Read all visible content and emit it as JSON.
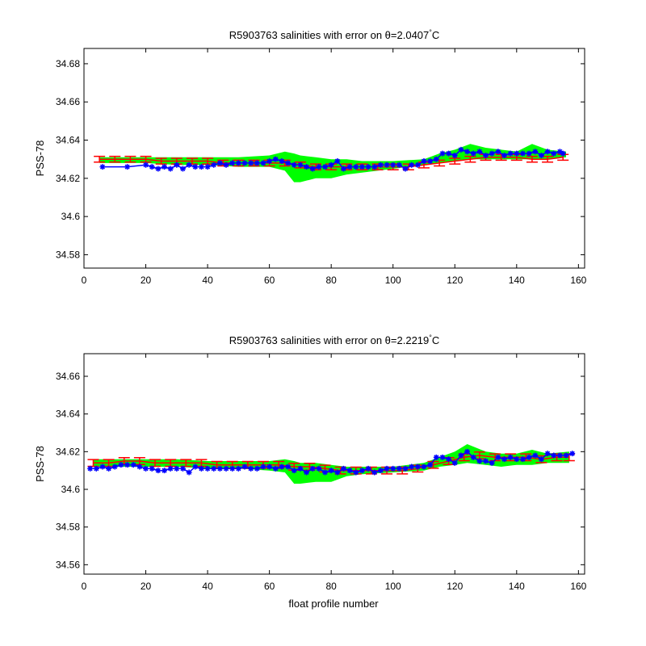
{
  "figure": {
    "xlabel": "float profile number"
  },
  "colors": {
    "envelope": "#00ff00",
    "error_bars": "#ff0000",
    "salinity": "#0000ff",
    "axes": "#000000"
  },
  "chart_data": [
    {
      "type": "line",
      "title_prefix": "R5903763 salinities with error on θ=",
      "theta": "2.0407",
      "unit": "°C",
      "xlabel": "",
      "ylabel": "PSS-78",
      "xlim": [
        0,
        162
      ],
      "ylim": [
        34.573,
        34.688
      ],
      "xticks": [
        0,
        20,
        40,
        60,
        80,
        100,
        120,
        140,
        160
      ],
      "yticks": [
        34.58,
        34.6,
        34.62,
        34.64,
        34.66,
        34.68
      ],
      "ytick_labels": [
        "34.58",
        "34.6",
        "34.62",
        "34.64",
        "34.66",
        "34.68"
      ],
      "series": [
        {
          "role": "envelope",
          "x": [
            5,
            15,
            20,
            30,
            40,
            50,
            60,
            65,
            68,
            70,
            75,
            80,
            85,
            90,
            100,
            110,
            115,
            120,
            125,
            130,
            135,
            140,
            145,
            150,
            156
          ],
          "upper": [
            34.631,
            34.631,
            34.631,
            34.631,
            34.631,
            34.631,
            34.632,
            34.634,
            34.633,
            34.632,
            34.631,
            34.63,
            34.63,
            34.629,
            34.629,
            34.63,
            34.633,
            34.635,
            34.638,
            34.636,
            34.635,
            34.634,
            34.638,
            34.635,
            34.634
          ],
          "lower": [
            34.628,
            34.628,
            34.628,
            34.627,
            34.627,
            34.626,
            34.626,
            34.624,
            34.618,
            34.618,
            34.62,
            34.62,
            34.622,
            34.623,
            34.625,
            34.627,
            34.628,
            34.629,
            34.63,
            34.63,
            34.63,
            34.63,
            34.63,
            34.63,
            34.631
          ]
        },
        {
          "role": "mapped",
          "x": [
            5,
            10,
            15,
            20,
            25,
            30,
            35,
            40,
            45,
            50,
            55,
            60,
            65,
            70,
            75,
            80,
            85,
            90,
            95,
            100,
            105,
            110,
            115,
            120,
            125,
            130,
            135,
            140,
            145,
            150,
            155
          ],
          "values": [
            34.63,
            34.63,
            34.63,
            34.63,
            34.629,
            34.629,
            34.629,
            34.629,
            34.628,
            34.628,
            34.628,
            34.628,
            34.628,
            34.627,
            34.626,
            34.626,
            34.626,
            34.626,
            34.626,
            34.626,
            34.626,
            34.627,
            34.628,
            34.629,
            34.63,
            34.631,
            34.631,
            34.631,
            34.63,
            34.63,
            34.631
          ],
          "error": 0.0015
        },
        {
          "role": "float",
          "x": [
            6,
            14,
            20,
            22,
            24,
            26,
            28,
            30,
            32,
            34,
            36,
            38,
            40,
            42,
            44,
            46,
            48,
            50,
            52,
            54,
            56,
            58,
            60,
            62,
            64,
            66,
            68,
            70,
            72,
            74,
            76,
            78,
            80,
            82,
            84,
            86,
            88,
            90,
            92,
            94,
            96,
            98,
            100,
            102,
            104,
            106,
            108,
            110,
            112,
            114,
            116,
            118,
            120,
            122,
            124,
            126,
            128,
            130,
            132,
            134,
            136,
            138,
            140,
            142,
            144,
            146,
            148,
            150,
            152,
            154,
            155
          ],
          "values": [
            34.626,
            34.626,
            34.627,
            34.626,
            34.625,
            34.626,
            34.625,
            34.627,
            34.625,
            34.627,
            34.626,
            34.626,
            34.626,
            34.627,
            34.628,
            34.627,
            34.628,
            34.628,
            34.628,
            34.628,
            34.628,
            34.628,
            34.629,
            34.63,
            34.629,
            34.628,
            34.627,
            34.627,
            34.626,
            34.625,
            34.626,
            34.626,
            34.627,
            34.629,
            34.625,
            34.626,
            34.626,
            34.626,
            34.626,
            34.626,
            34.627,
            34.627,
            34.627,
            34.627,
            34.625,
            34.627,
            34.627,
            34.629,
            34.629,
            34.63,
            34.633,
            34.633,
            34.632,
            34.635,
            34.634,
            34.633,
            34.634,
            34.632,
            34.633,
            34.634,
            34.632,
            34.633,
            34.633,
            34.633,
            34.633,
            34.634,
            34.632,
            34.634,
            34.633,
            34.634,
            34.633
          ]
        }
      ]
    },
    {
      "type": "line",
      "title_prefix": "R5903763 salinities with error on θ=",
      "theta": "2.2219",
      "unit": "°C",
      "xlabel": "float profile number",
      "ylabel": "PSS-78",
      "xlim": [
        0,
        162
      ],
      "ylim": [
        34.555,
        34.672
      ],
      "xticks": [
        0,
        20,
        40,
        60,
        80,
        100,
        120,
        140,
        160
      ],
      "yticks": [
        34.56,
        34.58,
        34.6,
        34.62,
        34.64,
        34.66
      ],
      "ytick_labels": [
        "34.56",
        "34.58",
        "34.6",
        "34.62",
        "34.64",
        "34.66"
      ],
      "series": [
        {
          "role": "envelope",
          "x": [
            3,
            15,
            20,
            30,
            40,
            50,
            60,
            65,
            68,
            70,
            75,
            80,
            85,
            90,
            100,
            110,
            115,
            120,
            124,
            130,
            135,
            140,
            145,
            150,
            157
          ],
          "upper": [
            34.616,
            34.616,
            34.616,
            34.616,
            34.615,
            34.615,
            34.615,
            34.616,
            34.615,
            34.614,
            34.614,
            34.613,
            34.612,
            34.612,
            34.612,
            34.614,
            34.617,
            34.62,
            34.624,
            34.62,
            34.619,
            34.619,
            34.621,
            34.619,
            34.62
          ],
          "lower": [
            34.612,
            34.612,
            34.612,
            34.612,
            34.611,
            34.611,
            34.61,
            34.609,
            34.603,
            34.603,
            34.604,
            34.604,
            34.607,
            34.608,
            34.609,
            34.61,
            34.612,
            34.613,
            34.614,
            34.613,
            34.612,
            34.613,
            34.613,
            34.614,
            34.614
          ]
        },
        {
          "role": "mapped",
          "x": [
            3,
            8,
            13,
            18,
            23,
            28,
            33,
            38,
            43,
            48,
            53,
            58,
            63,
            68,
            73,
            78,
            83,
            88,
            93,
            98,
            103,
            108,
            113,
            118,
            123,
            128,
            133,
            138,
            143,
            148,
            153,
            157
          ],
          "values": [
            34.614,
            34.614,
            34.615,
            34.615,
            34.614,
            34.614,
            34.614,
            34.614,
            34.613,
            34.613,
            34.613,
            34.613,
            34.613,
            34.612,
            34.612,
            34.611,
            34.61,
            34.61,
            34.61,
            34.61,
            34.61,
            34.611,
            34.613,
            34.615,
            34.617,
            34.618,
            34.617,
            34.617,
            34.617,
            34.616,
            34.617,
            34.617
          ],
          "error": 0.0018
        },
        {
          "role": "float",
          "x": [
            2,
            4,
            6,
            8,
            10,
            12,
            14,
            16,
            18,
            20,
            22,
            24,
            26,
            28,
            30,
            32,
            34,
            36,
            38,
            40,
            42,
            44,
            46,
            48,
            50,
            52,
            54,
            56,
            58,
            60,
            62,
            64,
            66,
            68,
            70,
            72,
            74,
            76,
            78,
            80,
            82,
            84,
            86,
            88,
            90,
            92,
            94,
            96,
            98,
            100,
            102,
            104,
            106,
            108,
            110,
            112,
            114,
            116,
            118,
            120,
            122,
            124,
            126,
            128,
            130,
            132,
            134,
            136,
            138,
            140,
            142,
            144,
            146,
            148,
            150,
            152,
            154,
            156,
            158
          ],
          "values": [
            34.611,
            34.611,
            34.612,
            34.611,
            34.612,
            34.613,
            34.613,
            34.613,
            34.612,
            34.611,
            34.611,
            34.61,
            34.61,
            34.611,
            34.611,
            34.611,
            34.609,
            34.612,
            34.611,
            34.611,
            34.611,
            34.611,
            34.611,
            34.611,
            34.611,
            34.612,
            34.611,
            34.611,
            34.612,
            34.612,
            34.611,
            34.612,
            34.612,
            34.61,
            34.611,
            34.609,
            34.611,
            34.611,
            34.609,
            34.61,
            34.609,
            34.611,
            34.61,
            34.609,
            34.61,
            34.611,
            34.609,
            34.61,
            34.611,
            34.611,
            34.611,
            34.611,
            34.612,
            34.612,
            34.612,
            34.613,
            34.617,
            34.617,
            34.616,
            34.614,
            34.618,
            34.62,
            34.617,
            34.615,
            34.615,
            34.614,
            34.617,
            34.616,
            34.617,
            34.616,
            34.616,
            34.617,
            34.618,
            34.616,
            34.619,
            34.618,
            34.618,
            34.618,
            34.619
          ]
        }
      ]
    }
  ]
}
